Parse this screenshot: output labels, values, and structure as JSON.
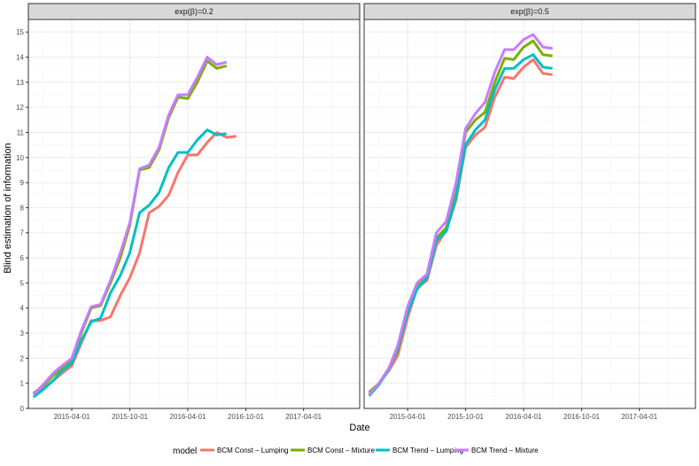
{
  "chart_data": {
    "type": "line",
    "xlabel": "Date",
    "ylabel": "Blind estimation of information",
    "ylim": [
      0,
      15.5
    ],
    "y_ticks": [
      0,
      1,
      2,
      3,
      4,
      5,
      6,
      7,
      8,
      9,
      10,
      11,
      12,
      13,
      14,
      15
    ],
    "x_ticks": [
      "2015-04-01",
      "2015-10-01",
      "2016-04-01",
      "2016-10-01",
      "2017-04-01"
    ],
    "xlim": [
      "2014-11-15",
      "2017-09-25"
    ],
    "grid": true,
    "legend": {
      "position": "bottom",
      "title": "model",
      "entries": [
        "BCM Const – Lumping",
        "BCM Const – Mixture",
        "BCM Trend – Lumping",
        "BCM Trend – Mixture"
      ]
    },
    "colors": {
      "BCM Const – Lumping": "#f8766d",
      "BCM Const – Mixture": "#7cae00",
      "BCM Trend – Lumping": "#00bfc4",
      "BCM Trend – Mixture": "#c77cff"
    },
    "x": [
      "2014-12-01",
      "2015-01-01",
      "2015-02-01",
      "2015-03-01",
      "2015-04-01",
      "2015-05-01",
      "2015-06-01",
      "2015-07-01",
      "2015-08-01",
      "2015-09-01",
      "2015-10-01",
      "2015-11-01",
      "2015-12-01",
      "2016-01-01",
      "2016-02-01",
      "2016-03-01",
      "2016-04-01",
      "2016-05-01",
      "2016-06-01",
      "2016-07-01",
      "2016-08-01",
      "2016-09-01",
      "2016-10-01",
      "2016-11-01",
      "2016-12-01",
      "2017-01-01",
      "2017-02-01",
      "2017-03-01",
      "2017-04-01",
      "2017-05-01",
      "2017-06-01",
      "2017-07-01"
    ],
    "panels": [
      {
        "strip": "exp(β)=0.2",
        "series": [
          {
            "name": "BCM Const – Lumping",
            "values": [
              0.6,
              0.8,
              1.1,
              1.4,
              1.7,
              2.6,
              3.5,
              3.5,
              3.65,
              4.5,
              5.2,
              6.2,
              7.8,
              8.05,
              8.5,
              9.4,
              10.1,
              10.1,
              10.6,
              11.0,
              10.8,
              10.85
            ]
          },
          {
            "name": "BCM Const – Mixture",
            "values": [
              0.6,
              0.9,
              1.3,
              1.6,
              1.9,
              3.0,
              4.0,
              4.1,
              5.0,
              6.0,
              7.3,
              9.5,
              9.6,
              10.3,
              11.6,
              12.4,
              12.35,
              13.0,
              13.85,
              13.55,
              13.65
            ]
          },
          {
            "name": "BCM Trend – Lumping",
            "values": [
              0.45,
              0.75,
              1.1,
              1.5,
              1.8,
              2.7,
              3.45,
              3.6,
              4.6,
              5.3,
              6.2,
              7.8,
              8.1,
              8.6,
              9.6,
              10.2,
              10.2,
              10.7,
              11.1,
              10.9,
              10.95
            ]
          },
          {
            "name": "BCM Trend – Mixture",
            "values": [
              0.55,
              0.95,
              1.4,
              1.7,
              2.0,
              3.1,
              4.05,
              4.15,
              5.1,
              6.2,
              7.4,
              9.55,
              9.7,
              10.4,
              11.7,
              12.5,
              12.5,
              13.2,
              14.0,
              13.7,
              13.8
            ]
          }
        ]
      },
      {
        "strip": "exp(β)=0.5",
        "series": [
          {
            "name": "BCM Const – Lumping",
            "values": [
              0.6,
              1.0,
              1.5,
              2.1,
              3.6,
              4.8,
              5.1,
              6.5,
              7.1,
              8.3,
              10.4,
              10.9,
              11.2,
              12.4,
              13.2,
              13.15,
              13.6,
              13.9,
              13.35,
              13.3
            ]
          },
          {
            "name": "BCM Const – Mixture",
            "values": [
              0.65,
              1.0,
              1.6,
              2.3,
              3.9,
              4.9,
              5.3,
              6.8,
              7.2,
              8.6,
              11.0,
              11.5,
              11.8,
              13.0,
              13.95,
              13.9,
              14.4,
              14.65,
              14.1,
              14.05
            ]
          },
          {
            "name": "BCM Trend – Lumping",
            "values": [
              0.5,
              0.95,
              1.55,
              2.4,
              3.8,
              4.75,
              5.2,
              6.7,
              7.05,
              8.4,
              10.5,
              11.1,
              11.5,
              12.7,
              13.55,
              13.55,
              13.9,
              14.1,
              13.6,
              13.55
            ]
          },
          {
            "name": "BCM Trend – Mixture",
            "values": [
              0.55,
              1.0,
              1.6,
              2.5,
              4.05,
              5.0,
              5.35,
              7.0,
              7.45,
              9.0,
              11.15,
              11.75,
              12.2,
              13.4,
              14.3,
              14.3,
              14.7,
              14.9,
              14.4,
              14.35
            ]
          }
        ]
      }
    ]
  }
}
